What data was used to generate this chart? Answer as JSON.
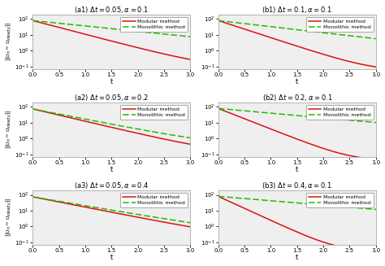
{
  "subplots": [
    {
      "title": "(a1) $\\Delta t = 0.05, \\alpha = 0.1$",
      "row": 0,
      "col": 0,
      "red_A": 80,
      "red_decay": 2.0,
      "red_floor": 0.08,
      "grn_A": 80,
      "grn_decay": 0.8,
      "grn_floor": 0.42
    },
    {
      "title": "(b1) $\\Delta t = 0.1, \\alpha = 0.1$",
      "row": 0,
      "col": 1,
      "red_A": 80,
      "red_decay": 2.5,
      "red_floor": 0.05,
      "grn_A": 80,
      "grn_decay": 0.9,
      "grn_floor": 0.35
    },
    {
      "title": "(a2) $\\Delta t = 0.05, \\alpha = 0.2$",
      "row": 1,
      "col": 0,
      "red_A": 75,
      "red_decay": 1.8,
      "red_floor": 0.1,
      "grn_A": 75,
      "grn_decay": 1.5,
      "grn_floor": 0.28
    },
    {
      "title": "(b2) $\\Delta t = 0.2, \\alpha = 0.1$",
      "row": 1,
      "col": 1,
      "red_A": 80,
      "red_decay": 3.0,
      "red_floor": 0.04,
      "grn_A": 80,
      "grn_decay": 0.7,
      "grn_floor": 0.6
    },
    {
      "title": "(a3) $\\Delta t = 0.05, \\alpha = 0.4$",
      "row": 2,
      "col": 0,
      "red_A": 75,
      "red_decay": 1.5,
      "red_floor": 0.12,
      "grn_A": 75,
      "grn_decay": 1.3,
      "grn_floor": 0.22
    },
    {
      "title": "(b3) $\\Delta t = 0.4, \\alpha = 0.1$",
      "row": 2,
      "col": 1,
      "red_A": 80,
      "red_decay": 3.5,
      "red_floor": 0.03,
      "grn_A": 80,
      "grn_decay": 0.65,
      "grn_floor": 0.7
    }
  ],
  "ylabel": "$||u_h - u_{steady}||$",
  "xlabel": "t",
  "xlim": [
    0,
    3
  ],
  "ymin": 0.07,
  "ymax": 200,
  "red_color": "#dd1111",
  "green_color": "#22bb00",
  "bg_color": "#efefef",
  "legend_labels": [
    "Modular method",
    "Monolithic method"
  ],
  "figsize": [
    4.74,
    3.27
  ],
  "dpi": 100
}
